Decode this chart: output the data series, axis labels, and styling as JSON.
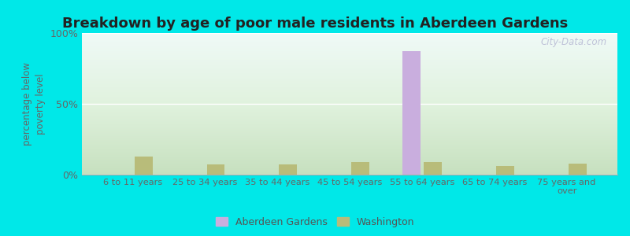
{
  "title": "Breakdown by age of poor male residents in Aberdeen Gardens",
  "categories": [
    "6 to 11 years",
    "25 to 34 years",
    "35 to 44 years",
    "45 to 54 years",
    "55 to 64 years",
    "65 to 74 years",
    "75 years and\nover"
  ],
  "aberdeen_values": [
    0,
    0,
    0,
    0,
    87,
    0,
    0
  ],
  "washington_values": [
    13,
    7,
    7,
    9,
    9,
    6,
    8
  ],
  "aberdeen_color": "#c9aede",
  "washington_color": "#b8bc7a",
  "ylabel": "percentage below\npoverty level",
  "ylim": [
    0,
    100
  ],
  "yticks": [
    0,
    50,
    100
  ],
  "ytick_labels": [
    "0%",
    "50%",
    "100%"
  ],
  "outer_background": "#00e8e8",
  "bar_width": 0.25,
  "title_fontsize": 13,
  "axis_fontsize": 9,
  "legend_labels": [
    "Aberdeen Gardens",
    "Washington"
  ],
  "grid_color": "#e0e8d8",
  "watermark": "City-Data.com",
  "bg_top_color": "#f0f8ff",
  "bg_bottom_color": "#d0e8c8"
}
